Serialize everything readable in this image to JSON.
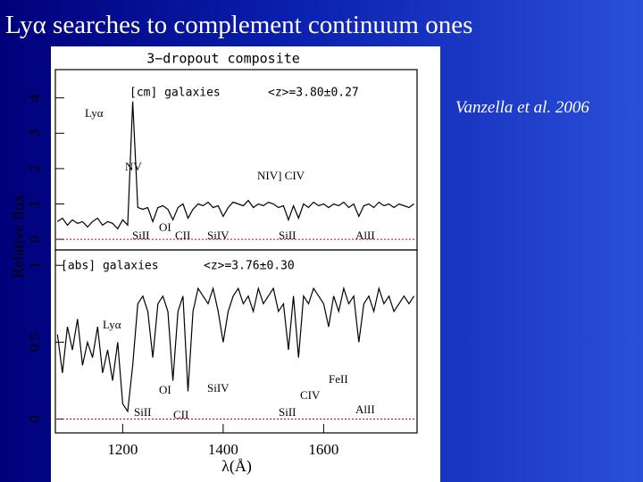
{
  "slide": {
    "title": "Lyα searches to complement continuum ones",
    "citation": "Vanzella et al. 2006"
  },
  "figure": {
    "title": "3−dropout composite",
    "y_label": "Relative flux",
    "x_label": "λ(Å)"
  },
  "chart_data": [
    {
      "type": "line",
      "annotations": [
        "[cm] galaxies",
        "<z>=3.80±0.27"
      ],
      "line_labels": [
        "Lyα",
        "NV",
        "NIV] CIV",
        "SiII",
        "OI",
        "CII",
        "SiIV",
        "SiII",
        "AlII"
      ],
      "x": [
        1070,
        1080,
        1090,
        1100,
        1110,
        1120,
        1130,
        1140,
        1150,
        1160,
        1170,
        1180,
        1190,
        1200,
        1210,
        1220,
        1230,
        1240,
        1250,
        1260,
        1270,
        1280,
        1290,
        1300,
        1310,
        1320,
        1330,
        1340,
        1350,
        1360,
        1370,
        1380,
        1390,
        1400,
        1410,
        1420,
        1430,
        1440,
        1450,
        1460,
        1470,
        1480,
        1490,
        1500,
        1510,
        1520,
        1530,
        1540,
        1550,
        1560,
        1570,
        1580,
        1590,
        1600,
        1610,
        1620,
        1630,
        1640,
        1650,
        1660,
        1670,
        1680,
        1690,
        1700,
        1710,
        1720,
        1730,
        1740,
        1750,
        1760,
        1770,
        1780
      ],
      "series": [
        {
          "color": "#000000",
          "values": [
            0.5,
            0.6,
            0.4,
            0.55,
            0.45,
            0.5,
            0.35,
            0.5,
            0.6,
            0.4,
            0.5,
            0.45,
            0.3,
            0.55,
            0.4,
            3.9,
            0.9,
            0.85,
            0.9,
            0.5,
            0.9,
            0.95,
            0.85,
            0.55,
            0.9,
            1.0,
            0.6,
            0.85,
            1.0,
            0.95,
            1.05,
            0.9,
            0.95,
            0.65,
            0.9,
            1.05,
            1.0,
            0.95,
            1.1,
            0.9,
            1.0,
            0.95,
            1.05,
            1.0,
            0.9,
            0.95,
            0.55,
            0.95,
            0.6,
            1.0,
            0.9,
            1.05,
            0.95,
            1.0,
            0.9,
            1.0,
            0.95,
            1.05,
            0.9,
            1.0,
            0.65,
            0.95,
            1.0,
            0.9,
            1.05,
            0.95,
            1.0,
            0.9,
            1.0,
            0.95,
            0.9,
            1.0
          ]
        }
      ],
      "xlim": [
        1066,
        1786
      ],
      "ylim": [
        -0.3,
        4.8
      ],
      "yticks": [
        0,
        1,
        2,
        3,
        4
      ],
      "reference_line": {
        "value": 0,
        "color": "#dd0000"
      }
    },
    {
      "type": "line",
      "annotations": [
        "[abs] galaxies",
        "<z>=3.76±0.30"
      ],
      "line_labels": [
        "Lyα",
        "OI",
        "CII",
        "SiII",
        "SiIV",
        "CIV",
        "SiII",
        "FeII",
        "AlII"
      ],
      "x": [
        1070,
        1080,
        1090,
        1100,
        1110,
        1120,
        1130,
        1140,
        1150,
        1160,
        1170,
        1180,
        1190,
        1200,
        1210,
        1220,
        1230,
        1240,
        1250,
        1260,
        1270,
        1280,
        1290,
        1300,
        1310,
        1320,
        1330,
        1340,
        1350,
        1360,
        1370,
        1380,
        1390,
        1400,
        1410,
        1420,
        1430,
        1440,
        1450,
        1460,
        1470,
        1480,
        1490,
        1500,
        1510,
        1520,
        1530,
        1540,
        1550,
        1560,
        1570,
        1580,
        1590,
        1600,
        1610,
        1620,
        1630,
        1640,
        1650,
        1660,
        1670,
        1680,
        1690,
        1700,
        1710,
        1720,
        1730,
        1740,
        1750,
        1760,
        1770,
        1780
      ],
      "series": [
        {
          "color": "#000000",
          "values": [
            0.55,
            0.3,
            0.6,
            0.45,
            0.65,
            0.35,
            0.5,
            0.4,
            0.6,
            0.3,
            0.45,
            0.25,
            0.5,
            0.1,
            0.05,
            0.35,
            0.75,
            0.8,
            0.7,
            0.4,
            0.75,
            0.8,
            0.7,
            0.25,
            0.7,
            0.8,
            0.18,
            0.7,
            0.85,
            0.8,
            0.75,
            0.85,
            0.7,
            0.5,
            0.7,
            0.8,
            0.85,
            0.75,
            0.8,
            0.7,
            0.85,
            0.75,
            0.8,
            0.85,
            0.7,
            0.75,
            0.45,
            0.8,
            0.4,
            0.8,
            0.75,
            0.85,
            0.8,
            0.75,
            0.6,
            0.8,
            0.7,
            0.85,
            0.75,
            0.8,
            0.5,
            0.75,
            0.8,
            0.7,
            0.85,
            0.75,
            0.8,
            0.7,
            0.75,
            0.8,
            0.75,
            0.8
          ]
        }
      ],
      "xlim": [
        1066,
        1786
      ],
      "ylim": [
        -0.09,
        1.1
      ],
      "yticks": [
        0,
        0.5,
        1
      ],
      "xticks": [
        1200,
        1400,
        1600
      ],
      "reference_line": {
        "value": 0,
        "color": "#dd0000"
      }
    }
  ]
}
